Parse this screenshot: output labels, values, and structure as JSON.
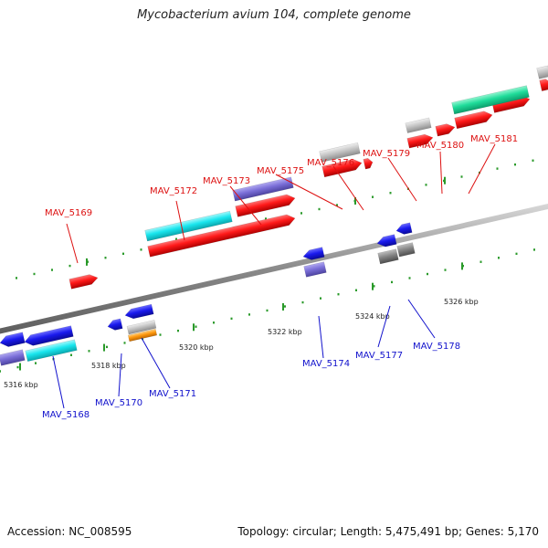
{
  "title": "Mycobacterium avium 104, complete genome",
  "footer": {
    "accession": "Accession: NC_008595",
    "summary": "Topology: circular; Length: 5,475,491 bp; Genes: 5,170"
  },
  "colors": {
    "cds": "#ff1a1a",
    "blue": "#1a1aee",
    "cyan": "#19e6ee",
    "purple": "#7b6fd8",
    "gray": "#c4c4c4",
    "darkgray": "#858585",
    "green": "#1fdc9a",
    "orange": "#ff9a10",
    "label_red": "#dd1111",
    "label_blue": "#1111cc"
  },
  "scale_labels": [
    "5316 kbp",
    "5318 kbp",
    "5320 kbp",
    "5322 kbp",
    "5324 kbp",
    "5326 kbp"
  ],
  "gene_labels_top": [
    "MAV_5169",
    "MAV_5172",
    "MAV_5173",
    "MAV_5175",
    "MAV_5176",
    "MAV_5179",
    "MAV_5180",
    "MAV_5181"
  ],
  "gene_labels_bottom": [
    "MAV_5168",
    "MAV_5170",
    "MAV_5171",
    "MAV_5174",
    "MAV_5177",
    "MAV_5178"
  ]
}
